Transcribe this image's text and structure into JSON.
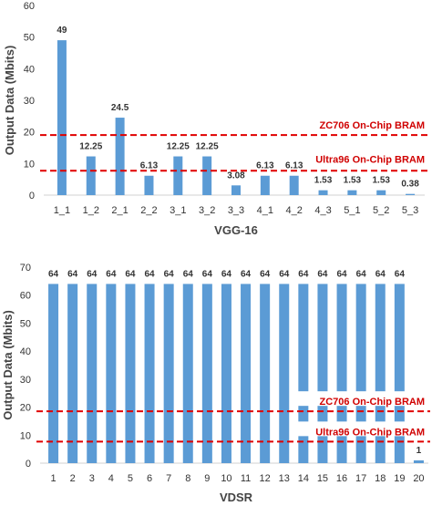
{
  "chart_data": [
    {
      "type": "bar",
      "categories": [
        "1_1",
        "1_2",
        "2_1",
        "2_2",
        "3_1",
        "3_2",
        "3_3",
        "4_1",
        "4_2",
        "4_3",
        "5_1",
        "5_2",
        "5_3"
      ],
      "values": [
        49,
        12.25,
        24.5,
        6.13,
        12.25,
        12.25,
        3.08,
        6.13,
        6.13,
        1.53,
        1.53,
        1.53,
        0.38
      ],
      "data_labels": [
        "49",
        "12.25",
        "24.5",
        "6.13",
        "12.25",
        "12.25",
        "3.08",
        "6.13",
        "6.13",
        "1.53",
        "1.53",
        "1.53",
        "0.38"
      ],
      "xlabel": "VGG-16",
      "ylabel": "Output Data (Mbits)",
      "ylim": [
        0,
        60
      ],
      "yticks": [
        0,
        10,
        20,
        30,
        40,
        50,
        60
      ],
      "bar_color": "#5b9bd5",
      "reference_lines": [
        {
          "label": "ZC706 On-Chip BRAM",
          "value": 19,
          "color": "#e00000"
        },
        {
          "label": "Ultra96 On-Chip BRAM",
          "value": 7.7,
          "color": "#e00000"
        }
      ]
    },
    {
      "type": "bar",
      "categories": [
        "1",
        "2",
        "3",
        "4",
        "5",
        "6",
        "7",
        "8",
        "9",
        "10",
        "11",
        "12",
        "13",
        "14",
        "15",
        "16",
        "17",
        "18",
        "19",
        "20"
      ],
      "values": [
        64,
        64,
        64,
        64,
        64,
        64,
        64,
        64,
        64,
        64,
        64,
        64,
        64,
        64,
        64,
        64,
        64,
        64,
        64,
        1
      ],
      "data_labels": [
        "64",
        "64",
        "64",
        "64",
        "64",
        "64",
        "64",
        "64",
        "64",
        "64",
        "64",
        "64",
        "64",
        "64",
        "64",
        "64",
        "64",
        "64",
        "64",
        "1"
      ],
      "xlabel": "VDSR",
      "ylabel": "Output Data (Mbits)",
      "ylim": [
        0,
        70
      ],
      "yticks": [
        0,
        10,
        20,
        30,
        40,
        50,
        60,
        70
      ],
      "bar_color": "#5b9bd5",
      "reference_lines": [
        {
          "label": "ZC706 On-Chip BRAM",
          "value": 18.5,
          "color": "#e00000"
        },
        {
          "label": "Ultra96 On-Chip BRAM",
          "value": 7.7,
          "color": "#e00000"
        }
      ]
    }
  ]
}
